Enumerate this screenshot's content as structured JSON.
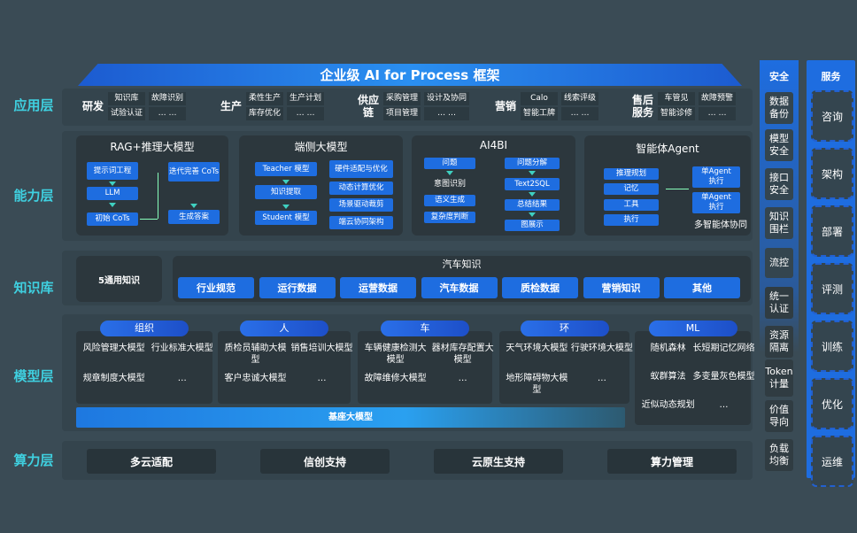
{
  "title": "企业级 AI for Process 框架",
  "layers": {
    "app": "应用层",
    "capability": "能力层",
    "knowledge": "知识库",
    "model": "模型层",
    "compute": "算力层"
  },
  "app_groups": [
    {
      "name": "研发",
      "col1": [
        "知识库",
        "试验认证"
      ],
      "col2": [
        "故障识别",
        "… …"
      ]
    },
    {
      "name": "生产",
      "col1": [
        "柔性生产",
        "库存优化"
      ],
      "col2": [
        "生产计划",
        "… …"
      ]
    },
    {
      "name": "供应链",
      "col1": [
        "采购管理",
        "项目管理"
      ],
      "col2": [
        "设计及协同",
        "… …"
      ]
    },
    {
      "name": "营销",
      "col1": [
        "Calo",
        "智能工牌"
      ],
      "col2": [
        "线索评级",
        "… …"
      ]
    },
    {
      "name": "售后服务",
      "col1": [
        "车管见",
        "智能诊修"
      ],
      "col2": [
        "故障预警",
        "… …"
      ]
    }
  ],
  "capability": {
    "rag": {
      "title": "RAG+推理大模型",
      "items": [
        "提示词工程",
        "LLM",
        "初始 CoTs",
        "迭代完善 CoTs",
        "生成答案"
      ]
    },
    "edge": {
      "title": "端侧大模型",
      "left": [
        "Teacher 模型",
        "知识提取",
        "Student 模型"
      ],
      "right": [
        "硬件适配与优化",
        "动态计算优化",
        "场景驱动裁剪",
        "端云协同架构"
      ]
    },
    "ai4bi": {
      "title": "AI4BI",
      "left": [
        "问题",
        "意图识别",
        "语义生成",
        "复杂度判断"
      ],
      "right": [
        "问题分解",
        "Text2SQL",
        "总结结果",
        "图展示"
      ]
    },
    "agent": {
      "title": "智能体Agent",
      "left": [
        "推理规划",
        "记忆",
        "工具",
        "执行"
      ],
      "right": [
        "单Agent 执行",
        "单Agent 执行"
      ],
      "caption": "多智能体协同"
    }
  },
  "knowledge": {
    "general": "5通用知识",
    "auto_title": "汽车知识",
    "items": [
      "行业规范",
      "运行数据",
      "运营数据",
      "汽车数据",
      "质检数据",
      "营销知识",
      "其他"
    ]
  },
  "model": {
    "groups": [
      {
        "name": "组织",
        "items": [
          "风险管理大模型",
          "行业标准大模型",
          "规章制度大模型",
          "…"
        ]
      },
      {
        "name": "人",
        "items": [
          "质检员辅助大模型",
          "销售培训大模型",
          "客户忠诚大模型",
          "…"
        ]
      },
      {
        "name": "车",
        "items": [
          "车辆健康检测大模型",
          "器材库存配置大模型",
          "故障维修大模型",
          "…"
        ]
      },
      {
        "name": "环",
        "items": [
          "天气环境大模型",
          "行驶环境大模型",
          "地形障碍物大模型",
          "…"
        ]
      },
      {
        "name": "ML",
        "items": [
          "随机森林",
          "长短期记忆网络",
          "蚁群算法",
          "多变量灰色模型",
          "近似动态规划",
          "…"
        ]
      }
    ],
    "base": "基座大模型"
  },
  "compute": [
    "多云适配",
    "信创支持",
    "云原生支持",
    "算力管理"
  ],
  "security": {
    "title": "安全",
    "items": [
      "数据备份",
      "模型安全",
      "接口安全",
      "知识围栏",
      "流控",
      "统一认证",
      "资源隔离",
      "Token计量",
      "价值导向",
      "负载均衡"
    ]
  },
  "service": {
    "title": "服务",
    "items": [
      "咨询",
      "架构",
      "部署",
      "评测",
      "训练",
      "优化",
      "运维"
    ]
  }
}
